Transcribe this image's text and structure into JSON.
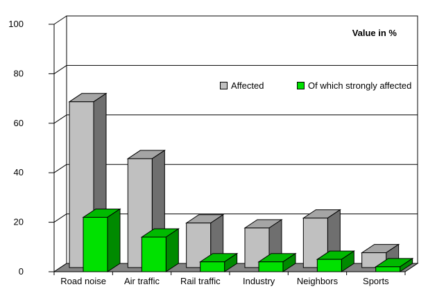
{
  "title": "Value in %",
  "legend": [
    {
      "label": "Affected",
      "color": "#C0C0C0"
    },
    {
      "label": "Of which strongly affected",
      "color": "#00E100"
    }
  ],
  "chart_data": {
    "type": "bar",
    "style": "3d-clustered-depth",
    "title": "Value in %",
    "xlabel": "",
    "ylabel": "",
    "ylim": [
      0,
      100
    ],
    "y_ticks": [
      0,
      20,
      40,
      60,
      80,
      100
    ],
    "grid": true,
    "legend_position": "top-center",
    "categories": [
      "Road noise",
      "Air traffic",
      "Rail traffic",
      "Industry",
      "Neighbors",
      "Sports"
    ],
    "series": [
      {
        "name": "Affected",
        "values": [
          67,
          44,
          18,
          16,
          20,
          6
        ]
      },
      {
        "name": "Of which strongly affected",
        "values": [
          22,
          14,
          4,
          4,
          5,
          2
        ]
      }
    ]
  },
  "colors": {
    "affected": {
      "front": "#C0C0C0",
      "top": "#A5A5A5",
      "side": "#6F6F6F"
    },
    "strongly_affected": {
      "front": "#00E100",
      "top": "#00BA00",
      "side": "#008A00"
    },
    "floor": "#858585",
    "wall": "#FFFFFF",
    "line": "#000000",
    "text": "#000000"
  }
}
